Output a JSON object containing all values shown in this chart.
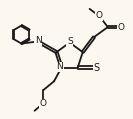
{
  "bg_color": "#fdf8ef",
  "line_color": "#1a1a1a",
  "lw": 1.3,
  "figsize": [
    1.33,
    1.19
  ],
  "dpi": 100,
  "xlim": [
    -1.0,
    9.5
  ],
  "ylim": [
    -1.5,
    8.0
  ]
}
